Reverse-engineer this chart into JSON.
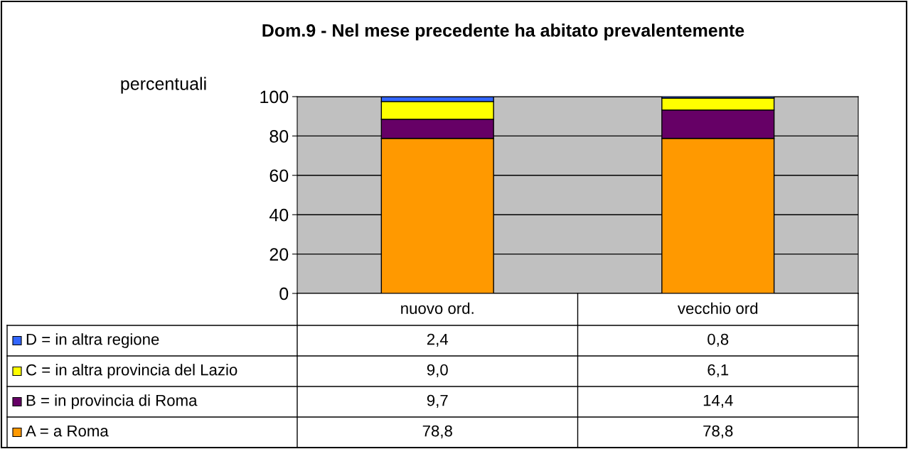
{
  "chart_data": {
    "type": "bar",
    "title": "Dom.9 - Nel mese precedente ha abitato prevalentemente",
    "ylabel": "percentuali",
    "categories": [
      "nuovo ord.",
      "vecchio ord"
    ],
    "series": [
      {
        "name": "A = a Roma",
        "color": "#ff9900",
        "values": [
          78.8,
          78.8
        ],
        "value_labels": [
          "78,8",
          "78,8"
        ]
      },
      {
        "name": "B = in provincia di Roma",
        "color": "#660066",
        "values": [
          9.7,
          14.4
        ],
        "value_labels": [
          "9,7",
          "14,4"
        ]
      },
      {
        "name": "C = in altra provincia del Lazio",
        "color": "#ffff00",
        "values": [
          9.0,
          6.1
        ],
        "value_labels": [
          "9,0",
          "6,1"
        ]
      },
      {
        "name": "D = in altra regione",
        "color": "#3366ff",
        "values": [
          2.4,
          0.8
        ],
        "value_labels": [
          "2,4",
          "0,8"
        ]
      }
    ],
    "stacked": true,
    "ylim": [
      0,
      100
    ],
    "yticks": [
      0,
      20,
      40,
      60,
      80,
      100
    ],
    "grid": "y",
    "legend": "bottom"
  }
}
